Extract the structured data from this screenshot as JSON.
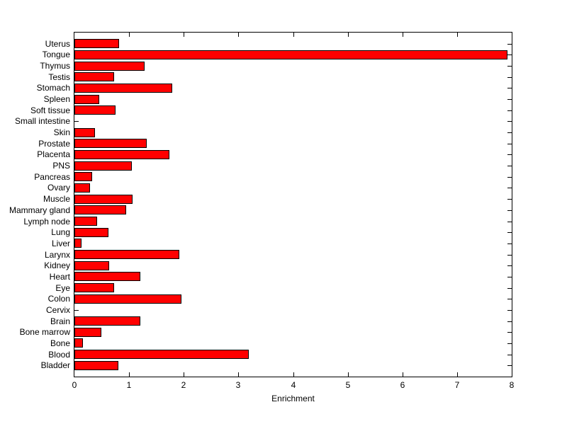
{
  "figure": {
    "background": "#ffffff"
  },
  "chart_data": {
    "type": "bar",
    "orientation": "horizontal",
    "title": "",
    "xlabel": "Enrichment",
    "ylabel": "",
    "xlim": [
      0,
      8
    ],
    "x_ticks": [
      0,
      1,
      2,
      3,
      4,
      5,
      6,
      7,
      8
    ],
    "grid": false,
    "legend": "none",
    "bar_color": "#ff0000",
    "bar_edge_color": "#000000",
    "axis_color": "#000000",
    "categories": [
      "Uterus",
      "Tongue",
      "Thymus",
      "Testis",
      "Stomach",
      "Spleen",
      "Soft tissue",
      "Small intestine",
      "Skin",
      "Prostate",
      "Placenta",
      "PNS",
      "Pancreas",
      "Ovary",
      "Muscle",
      "Mammary gland",
      "Lymph node",
      "Lung",
      "Liver",
      "Larynx",
      "Kidney",
      "Heart",
      "Eye",
      "Colon",
      "Cervix",
      "Brain",
      "Bone marrow",
      "Bone",
      "Blood",
      "Bladder"
    ],
    "values": [
      0.82,
      7.92,
      1.29,
      0.72,
      1.79,
      0.46,
      0.75,
      0,
      0.37,
      1.32,
      1.74,
      1.05,
      0.32,
      0.28,
      1.06,
      0.95,
      0.41,
      0.62,
      0.13,
      1.92,
      0.64,
      1.2,
      0.73,
      1.96,
      0,
      1.21,
      0.49,
      0.16,
      3.19,
      0.81
    ]
  }
}
